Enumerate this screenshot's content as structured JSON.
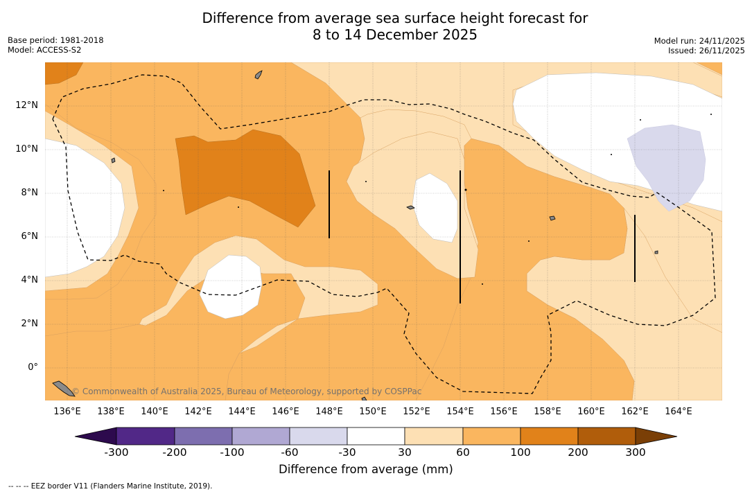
{
  "title": {
    "line1": "Difference from average sea surface height forecast for",
    "line2": "8 to 14 December 2025"
  },
  "meta_left": {
    "base_period": "Base period: 1981-2018",
    "model": "Model: ACCESS-S2"
  },
  "meta_right": {
    "model_run": "Model run: 24/11/2025",
    "issued": "Issued: 26/11/2025"
  },
  "map": {
    "lon_labels": [
      "136°E",
      "138°E",
      "140°E",
      "142°E",
      "144°E",
      "146°E",
      "148°E",
      "150°E",
      "152°E",
      "154°E",
      "156°E",
      "158°E",
      "160°E",
      "162°E",
      "164°E"
    ],
    "lat_labels": [
      "12°N",
      "10°N",
      "8°N",
      "6°N",
      "4°N",
      "2°N",
      "0°"
    ],
    "credit": "© Commonwealth of Australia 2025, Bureau of Meteorology, supported by COSPPac"
  },
  "colorbar": {
    "ticks": [
      "-300",
      "-200",
      "-100",
      "-60",
      "-30",
      "30",
      "60",
      "100",
      "200",
      "300"
    ],
    "label": "Difference from average (mm)",
    "colors": {
      "below_min": "#2d0a4d",
      "c1": "#512887",
      "c2": "#7d6eaf",
      "c3": "#b0a8d3",
      "c4": "#d9d9ec",
      "c5": "#ffffff",
      "c6": "#fde0b4",
      "c7": "#fab65f",
      "c8": "#e1821a",
      "c9": "#b05d0b",
      "above_max": "#7a3f06"
    }
  },
  "footnote": "-- -- -- EEZ border V11 (Flanders Marine Institute, 2019)."
}
